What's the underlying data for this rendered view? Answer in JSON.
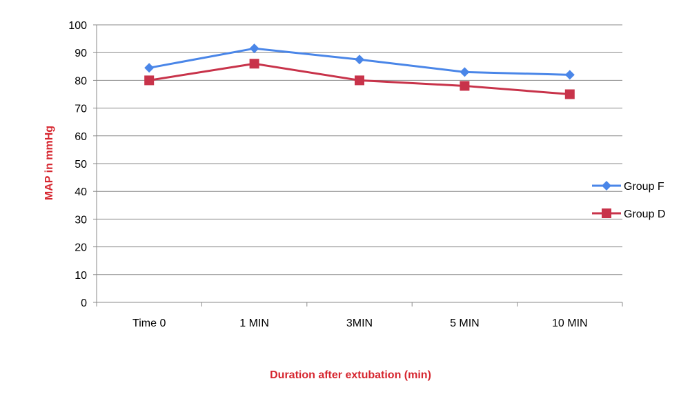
{
  "chart_data": {
    "type": "line",
    "categories": [
      "Time 0",
      "1 MIN",
      "3MIN",
      "5 MIN",
      "10 MIN"
    ],
    "series": [
      {
        "name": "Group F",
        "values": [
          84.5,
          91.5,
          87.5,
          83,
          82
        ],
        "color": "#4a86e8",
        "marker": "diamond"
      },
      {
        "name": "Group D",
        "values": [
          80,
          86,
          80,
          78,
          75
        ],
        "color": "#c8334a",
        "marker": "square"
      }
    ],
    "xlabel": "Duration after extubation (min)",
    "ylabel": "MAP in mmHg",
    "label_color": "#d6262f",
    "ylim": [
      0,
      100
    ],
    "yticks": [
      0,
      10,
      20,
      30,
      40,
      50,
      60,
      70,
      80,
      90,
      100
    ],
    "grid": true,
    "legend_position": "right"
  }
}
